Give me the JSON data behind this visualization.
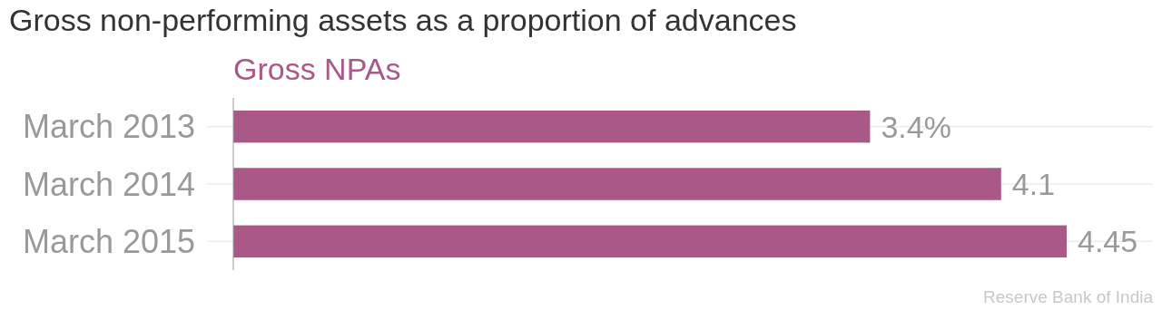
{
  "chart_data": {
    "type": "bar",
    "orientation": "horizontal",
    "title": "Gross non-performing assets as a proportion of advances",
    "categories": [
      "March 2013",
      "March 2014",
      "March 2015"
    ],
    "series": [
      {
        "name": "Gross NPAs",
        "color": "#a95887",
        "values": [
          3.4,
          4.1,
          4.45
        ],
        "value_labels": [
          "3.4%",
          "4.1",
          "4.45"
        ]
      }
    ],
    "legend": "top left",
    "grid": "y",
    "annotations": [
      "Reserve Bank of India"
    ]
  }
}
